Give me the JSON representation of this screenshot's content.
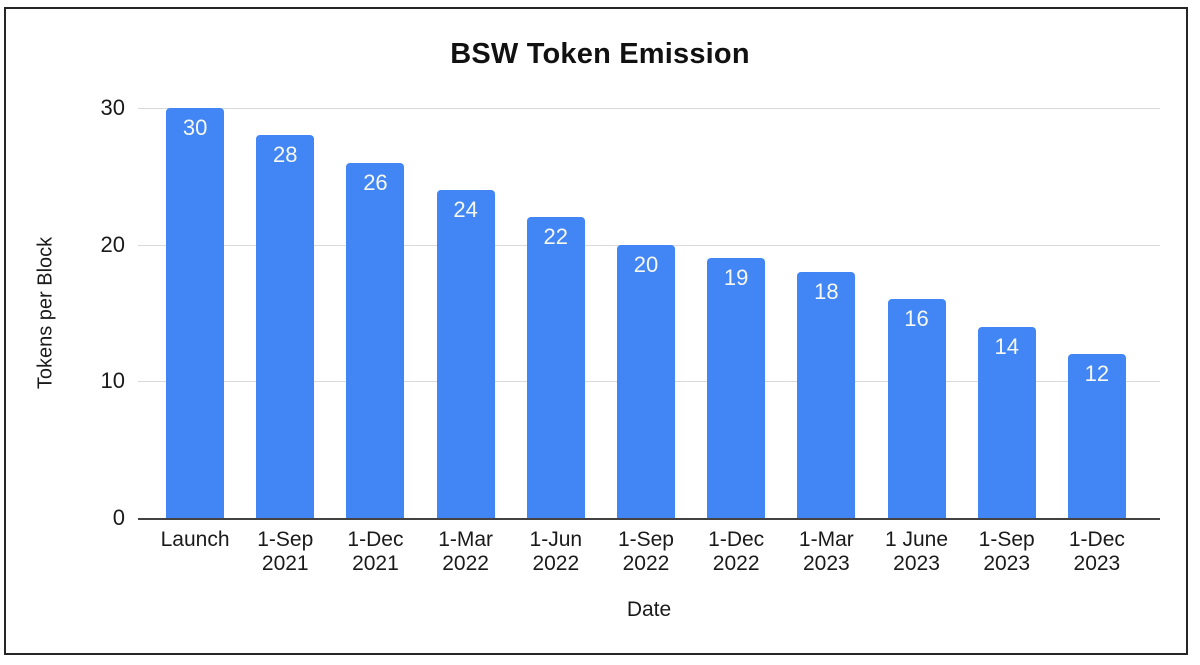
{
  "chart_data": {
    "type": "bar",
    "title": "BSW Token Emission",
    "xlabel": "Date",
    "ylabel": "Tokens per Block",
    "categories": [
      "Launch",
      "1-Sep\n2021",
      "1-Dec\n2021",
      "1-Mar\n2022",
      "1-Jun\n2022",
      "1-Sep\n2022",
      "1-Dec\n2022",
      "1-Mar\n2023",
      "1 June\n2023",
      "1-Sep\n2023",
      "1-Dec\n2023"
    ],
    "values": [
      30,
      28,
      26,
      24,
      22,
      20,
      19,
      18,
      16,
      14,
      12
    ],
    "yticks": [
      0,
      10,
      20,
      30
    ],
    "ylim": [
      0,
      30
    ],
    "grid": true,
    "legend_position": "none",
    "bar_color": "#4285F4",
    "bar_label_color": "#f6f8f3",
    "gridline_color": "#d9d9d9",
    "baseline_color": "#424242",
    "text_color": "#1a1a1a"
  }
}
